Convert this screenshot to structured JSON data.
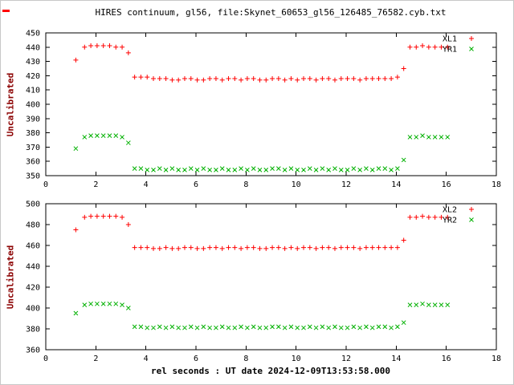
{
  "figure": {
    "title": "HIRES continuum, gl56, file:Skynet_60653_gl56_126485_76582.cyb.txt",
    "xlabel": "rel seconds : UT date 2024-12-09T13:53:58.000",
    "colors": {
      "series_red": "#ff0000",
      "series_green": "#00b000",
      "axis_label": "#8b0000",
      "text": "#000000"
    }
  },
  "chart_data": [
    {
      "type": "scatter",
      "ylabel": "Uncalibrated",
      "xlim": [
        0,
        18
      ],
      "ylim": [
        350,
        450
      ],
      "xticks": [
        0,
        2,
        4,
        6,
        8,
        10,
        12,
        14,
        16,
        18
      ],
      "yticks": [
        350,
        360,
        370,
        380,
        390,
        400,
        410,
        420,
        430,
        440,
        450
      ],
      "grid": false,
      "legend_position": "top-right",
      "series": [
        {
          "name": "XL1",
          "marker": "plus",
          "color": "#ff0000",
          "points": [
            [
              1.2,
              431
            ],
            [
              1.55,
              440
            ],
            [
              1.8,
              441
            ],
            [
              2.05,
              441
            ],
            [
              2.3,
              441
            ],
            [
              2.55,
              441
            ],
            [
              2.8,
              440
            ],
            [
              3.05,
              440
            ],
            [
              3.3,
              436
            ],
            [
              3.55,
              419
            ],
            [
              3.8,
              419
            ],
            [
              4.05,
              419
            ],
            [
              4.3,
              418
            ],
            [
              4.55,
              418
            ],
            [
              4.8,
              418
            ],
            [
              5.05,
              417
            ],
            [
              5.3,
              417
            ],
            [
              5.55,
              418
            ],
            [
              5.8,
              418
            ],
            [
              6.05,
              417
            ],
            [
              6.3,
              417
            ],
            [
              6.55,
              418
            ],
            [
              6.8,
              418
            ],
            [
              7.05,
              417
            ],
            [
              7.3,
              418
            ],
            [
              7.55,
              418
            ],
            [
              7.8,
              417
            ],
            [
              8.05,
              418
            ],
            [
              8.3,
              418
            ],
            [
              8.55,
              417
            ],
            [
              8.8,
              417
            ],
            [
              9.05,
              418
            ],
            [
              9.3,
              418
            ],
            [
              9.55,
              417
            ],
            [
              9.8,
              418
            ],
            [
              10.05,
              417
            ],
            [
              10.3,
              418
            ],
            [
              10.55,
              418
            ],
            [
              10.8,
              417
            ],
            [
              11.05,
              418
            ],
            [
              11.3,
              418
            ],
            [
              11.55,
              417
            ],
            [
              11.8,
              418
            ],
            [
              12.05,
              418
            ],
            [
              12.3,
              418
            ],
            [
              12.55,
              417
            ],
            [
              12.8,
              418
            ],
            [
              13.05,
              418
            ],
            [
              13.3,
              418
            ],
            [
              13.55,
              418
            ],
            [
              13.8,
              418
            ],
            [
              14.05,
              419
            ],
            [
              14.3,
              425
            ],
            [
              14.55,
              440
            ],
            [
              14.8,
              440
            ],
            [
              15.05,
              441
            ],
            [
              15.3,
              440
            ],
            [
              15.55,
              440
            ],
            [
              15.8,
              440
            ],
            [
              16.05,
              440
            ]
          ]
        },
        {
          "name": "YR1",
          "marker": "cross",
          "color": "#00b000",
          "points": [
            [
              1.2,
              369
            ],
            [
              1.55,
              377
            ],
            [
              1.8,
              378
            ],
            [
              2.05,
              378
            ],
            [
              2.3,
              378
            ],
            [
              2.55,
              378
            ],
            [
              2.8,
              378
            ],
            [
              3.05,
              377
            ],
            [
              3.3,
              373
            ],
            [
              3.55,
              355
            ],
            [
              3.8,
              355
            ],
            [
              4.05,
              354
            ],
            [
              4.3,
              354
            ],
            [
              4.55,
              355
            ],
            [
              4.8,
              354
            ],
            [
              5.05,
              355
            ],
            [
              5.3,
              354
            ],
            [
              5.55,
              354
            ],
            [
              5.8,
              355
            ],
            [
              6.05,
              354
            ],
            [
              6.3,
              355
            ],
            [
              6.55,
              354
            ],
            [
              6.8,
              354
            ],
            [
              7.05,
              355
            ],
            [
              7.3,
              354
            ],
            [
              7.55,
              354
            ],
            [
              7.8,
              355
            ],
            [
              8.05,
              354
            ],
            [
              8.3,
              355
            ],
            [
              8.55,
              354
            ],
            [
              8.8,
              354
            ],
            [
              9.05,
              355
            ],
            [
              9.3,
              355
            ],
            [
              9.55,
              354
            ],
            [
              9.8,
              355
            ],
            [
              10.05,
              354
            ],
            [
              10.3,
              354
            ],
            [
              10.55,
              355
            ],
            [
              10.8,
              354
            ],
            [
              11.05,
              355
            ],
            [
              11.3,
              354
            ],
            [
              11.55,
              355
            ],
            [
              11.8,
              354
            ],
            [
              12.05,
              354
            ],
            [
              12.3,
              355
            ],
            [
              12.55,
              354
            ],
            [
              12.8,
              355
            ],
            [
              13.05,
              354
            ],
            [
              13.3,
              355
            ],
            [
              13.55,
              355
            ],
            [
              13.8,
              354
            ],
            [
              14.05,
              355
            ],
            [
              14.3,
              361
            ],
            [
              14.55,
              377
            ],
            [
              14.8,
              377
            ],
            [
              15.05,
              378
            ],
            [
              15.3,
              377
            ],
            [
              15.55,
              377
            ],
            [
              15.8,
              377
            ],
            [
              16.05,
              377
            ]
          ]
        }
      ]
    },
    {
      "type": "scatter",
      "ylabel": "Uncalibrated",
      "xlim": [
        0,
        18
      ],
      "ylim": [
        360,
        500
      ],
      "xticks": [
        0,
        2,
        4,
        6,
        8,
        10,
        12,
        14,
        16,
        18
      ],
      "yticks": [
        360,
        380,
        400,
        420,
        440,
        460,
        480,
        500
      ],
      "grid": false,
      "legend_position": "top-right",
      "series": [
        {
          "name": "XL2",
          "marker": "plus",
          "color": "#ff0000",
          "points": [
            [
              1.2,
              475
            ],
            [
              1.55,
              487
            ],
            [
              1.8,
              488
            ],
            [
              2.05,
              488
            ],
            [
              2.3,
              488
            ],
            [
              2.55,
              488
            ],
            [
              2.8,
              488
            ],
            [
              3.05,
              487
            ],
            [
              3.3,
              480
            ],
            [
              3.55,
              458
            ],
            [
              3.8,
              458
            ],
            [
              4.05,
              458
            ],
            [
              4.3,
              457
            ],
            [
              4.55,
              457
            ],
            [
              4.8,
              458
            ],
            [
              5.05,
              457
            ],
            [
              5.3,
              457
            ],
            [
              5.55,
              458
            ],
            [
              5.8,
              458
            ],
            [
              6.05,
              457
            ],
            [
              6.3,
              457
            ],
            [
              6.55,
              458
            ],
            [
              6.8,
              458
            ],
            [
              7.05,
              457
            ],
            [
              7.3,
              458
            ],
            [
              7.55,
              458
            ],
            [
              7.8,
              457
            ],
            [
              8.05,
              458
            ],
            [
              8.3,
              458
            ],
            [
              8.55,
              457
            ],
            [
              8.8,
              457
            ],
            [
              9.05,
              458
            ],
            [
              9.3,
              458
            ],
            [
              9.55,
              457
            ],
            [
              9.8,
              458
            ],
            [
              10.05,
              457
            ],
            [
              10.3,
              458
            ],
            [
              10.55,
              458
            ],
            [
              10.8,
              457
            ],
            [
              11.05,
              458
            ],
            [
              11.3,
              458
            ],
            [
              11.55,
              457
            ],
            [
              11.8,
              458
            ],
            [
              12.05,
              458
            ],
            [
              12.3,
              458
            ],
            [
              12.55,
              457
            ],
            [
              12.8,
              458
            ],
            [
              13.05,
              458
            ],
            [
              13.3,
              458
            ],
            [
              13.55,
              458
            ],
            [
              13.8,
              458
            ],
            [
              14.05,
              458
            ],
            [
              14.3,
              465
            ],
            [
              14.55,
              487
            ],
            [
              14.8,
              487
            ],
            [
              15.05,
              488
            ],
            [
              15.3,
              487
            ],
            [
              15.55,
              487
            ],
            [
              15.8,
              487
            ],
            [
              16.05,
              487
            ]
          ]
        },
        {
          "name": "YR2",
          "marker": "cross",
          "color": "#00b000",
          "points": [
            [
              1.2,
              395
            ],
            [
              1.55,
              403
            ],
            [
              1.8,
              404
            ],
            [
              2.05,
              404
            ],
            [
              2.3,
              404
            ],
            [
              2.55,
              404
            ],
            [
              2.8,
              404
            ],
            [
              3.05,
              403
            ],
            [
              3.3,
              400
            ],
            [
              3.55,
              382
            ],
            [
              3.8,
              382
            ],
            [
              4.05,
              381
            ],
            [
              4.3,
              381
            ],
            [
              4.55,
              382
            ],
            [
              4.8,
              381
            ],
            [
              5.05,
              382
            ],
            [
              5.3,
              381
            ],
            [
              5.55,
              381
            ],
            [
              5.8,
              382
            ],
            [
              6.05,
              381
            ],
            [
              6.3,
              382
            ],
            [
              6.55,
              381
            ],
            [
              6.8,
              381
            ],
            [
              7.05,
              382
            ],
            [
              7.3,
              381
            ],
            [
              7.55,
              381
            ],
            [
              7.8,
              382
            ],
            [
              8.05,
              381
            ],
            [
              8.3,
              382
            ],
            [
              8.55,
              381
            ],
            [
              8.8,
              381
            ],
            [
              9.05,
              382
            ],
            [
              9.3,
              382
            ],
            [
              9.55,
              381
            ],
            [
              9.8,
              382
            ],
            [
              10.05,
              381
            ],
            [
              10.3,
              381
            ],
            [
              10.55,
              382
            ],
            [
              10.8,
              381
            ],
            [
              11.05,
              382
            ],
            [
              11.3,
              381
            ],
            [
              11.55,
              382
            ],
            [
              11.8,
              381
            ],
            [
              12.05,
              381
            ],
            [
              12.3,
              382
            ],
            [
              12.55,
              381
            ],
            [
              12.8,
              382
            ],
            [
              13.05,
              381
            ],
            [
              13.3,
              382
            ],
            [
              13.55,
              382
            ],
            [
              13.8,
              381
            ],
            [
              14.05,
              382
            ],
            [
              14.3,
              386
            ],
            [
              14.55,
              403
            ],
            [
              14.8,
              403
            ],
            [
              15.05,
              404
            ],
            [
              15.3,
              403
            ],
            [
              15.55,
              403
            ],
            [
              15.8,
              403
            ],
            [
              16.05,
              403
            ]
          ]
        }
      ]
    }
  ]
}
